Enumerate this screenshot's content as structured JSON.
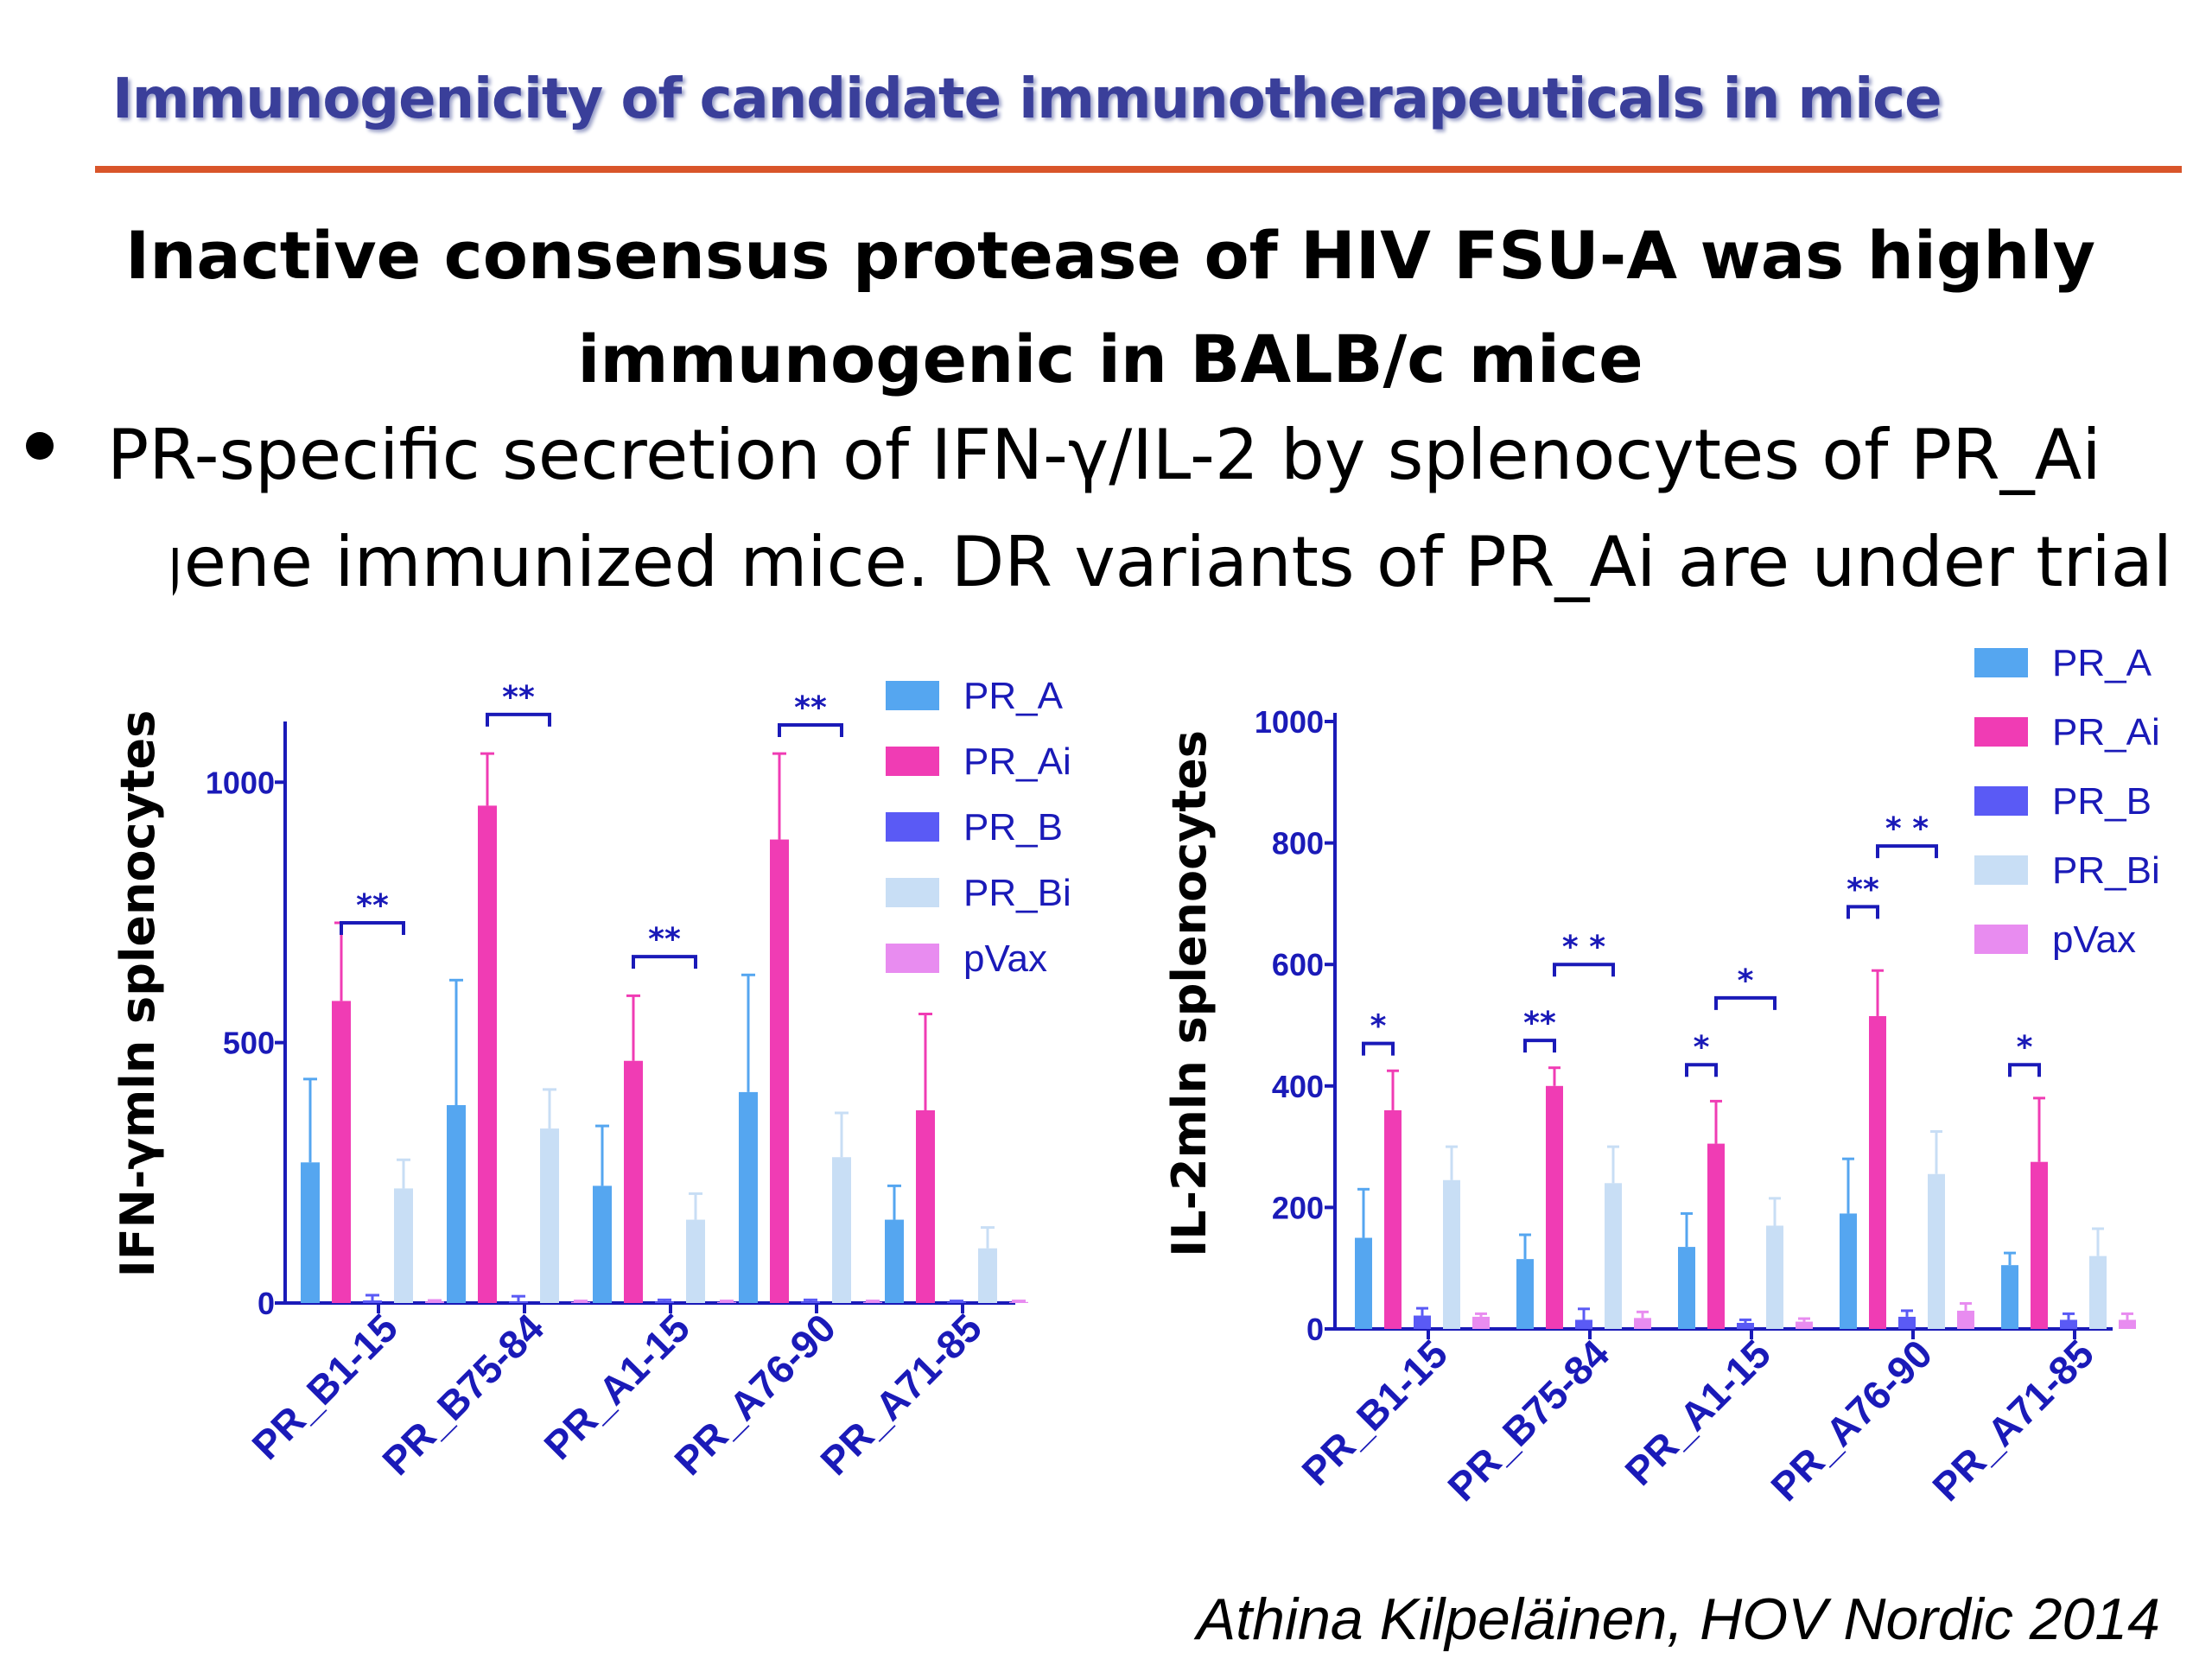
{
  "slide": {
    "title": "Immunogenicity of candidate immunotherapeuticals in mice",
    "headline": "Inactive consensus protease of HIV FSU-A was highly immunogenic in BALB/c mice",
    "bullet_line1": "PR-specific secretion of IFN-γ/IL-2 by splenocytes of PR_Ai",
    "bullet_line2": "gene immunized mice. DR variants of PR_Ai are under trial",
    "credit": "Athina Kilpeläinen, HOV Nordic 2014"
  },
  "colors": {
    "title": "#3a3f9a",
    "rule": "#d9552a",
    "axis": "#1a1ab8",
    "PR_A": "#55a6f0",
    "PR_Ai": "#f03cb4",
    "PR_B": "#5a5af5",
    "PR_Bi": "#c8def5",
    "pVax": "#e88cf0"
  },
  "chart_data": [
    {
      "type": "bar",
      "ylabel": "IFN-γmln splenocytes",
      "ylim": [
        0,
        1100
      ],
      "yticks": [
        "0",
        "500",
        "1000"
      ],
      "categories": [
        "PR_B1-15",
        "PR_B75-84",
        "PR_A1-15",
        "PR_A76-90",
        "PR_A71-85"
      ],
      "legend": [
        "PR_A",
        "PR_Ai",
        "PR_B",
        "PR_Bi",
        "pVax"
      ],
      "legend_position": "top-right",
      "series": [
        {
          "name": "PR_A",
          "values": [
            270,
            380,
            225,
            405,
            160
          ],
          "errors": [
            160,
            240,
            115,
            225,
            65
          ]
        },
        {
          "name": "PR_Ai",
          "values": [
            580,
            955,
            465,
            890,
            370
          ],
          "errors": [
            150,
            100,
            125,
            165,
            185
          ]
        },
        {
          "name": "PR_B",
          "values": [
            5,
            3,
            3,
            3,
            2
          ],
          "errors": [
            10,
            10,
            3,
            3,
            2
          ]
        },
        {
          "name": "PR_Bi",
          "values": [
            220,
            335,
            160,
            280,
            105
          ],
          "errors": [
            55,
            75,
            50,
            85,
            40
          ]
        },
        {
          "name": "pVax",
          "values": [
            3,
            2,
            2,
            2,
            2
          ],
          "errors": [
            2,
            2,
            2,
            2,
            2
          ]
        }
      ],
      "significance": [
        {
          "label": "**",
          "category": 0,
          "level": 730
        },
        {
          "label": "**",
          "category": 1,
          "level": 1130
        },
        {
          "label": "**",
          "category": 2,
          "level": 665
        },
        {
          "label": "**",
          "category": 3,
          "level": 1110
        }
      ]
    },
    {
      "type": "bar",
      "ylabel": "IL-2mln splenocytes",
      "ylim": [
        0,
        1000
      ],
      "yticks": [
        "0",
        "200",
        "400",
        "600",
        "800",
        "1000"
      ],
      "categories": [
        "PR_B1-15",
        "PR_B75-84",
        "PR_A1-15",
        "PR_A76-90",
        "PR_A71-85"
      ],
      "legend": [
        "PR_A",
        "PR_Ai",
        "PR_B",
        "PR_Bi",
        "pVax"
      ],
      "legend_position": "top-right",
      "series": [
        {
          "name": "PR_A",
          "values": [
            150,
            115,
            135,
            190,
            105
          ],
          "errors": [
            80,
            40,
            55,
            90,
            20
          ]
        },
        {
          "name": "PR_Ai",
          "values": [
            360,
            400,
            305,
            515,
            275
          ],
          "errors": [
            65,
            30,
            70,
            75,
            105
          ]
        },
        {
          "name": "PR_B",
          "values": [
            22,
            15,
            10,
            20,
            15
          ],
          "errors": [
            12,
            18,
            5,
            10,
            10
          ]
        },
        {
          "name": "PR_Bi",
          "values": [
            245,
            240,
            170,
            255,
            120
          ],
          "errors": [
            55,
            60,
            45,
            70,
            45
          ]
        },
        {
          "name": "pVax",
          "values": [
            20,
            18,
            12,
            30,
            15
          ],
          "errors": [
            5,
            10,
            5,
            12,
            10
          ]
        }
      ],
      "significance": [
        {
          "label": "*",
          "from_series": 0,
          "to_series": 1,
          "category": 0,
          "level": 470
        },
        {
          "label": "**",
          "from_series": 0,
          "to_series": 1,
          "category": 1,
          "level": 475
        },
        {
          "label": "* *",
          "from_series": 1,
          "to_series": 3,
          "category": 1,
          "level": 600
        },
        {
          "label": "*",
          "from_series": 0,
          "to_series": 1,
          "category": 2,
          "level": 435
        },
        {
          "label": "*",
          "from_series": 1,
          "to_series": 3,
          "category": 2,
          "level": 545
        },
        {
          "label": "**",
          "from_series": 0,
          "to_series": 1,
          "category": 3,
          "level": 695
        },
        {
          "label": "* *",
          "from_series": 1,
          "to_series": 3,
          "category": 3,
          "level": 795
        },
        {
          "label": "*",
          "from_series": 0,
          "to_series": 1,
          "category": 4,
          "level": 435
        }
      ]
    }
  ]
}
